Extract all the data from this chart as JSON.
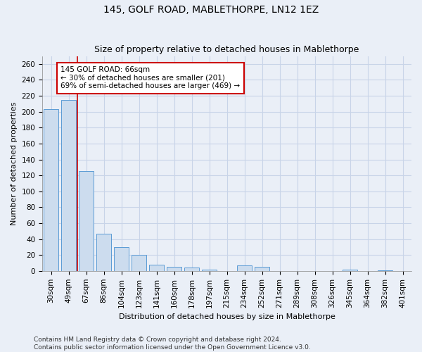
{
  "title": "145, GOLF ROAD, MABLETHORPE, LN12 1EZ",
  "subtitle": "Size of property relative to detached houses in Mablethorpe",
  "xlabel": "Distribution of detached houses by size in Mablethorpe",
  "ylabel": "Number of detached properties",
  "categories": [
    "30sqm",
    "49sqm",
    "67sqm",
    "86sqm",
    "104sqm",
    "123sqm",
    "141sqm",
    "160sqm",
    "178sqm",
    "197sqm",
    "215sqm",
    "234sqm",
    "252sqm",
    "271sqm",
    "289sqm",
    "308sqm",
    "326sqm",
    "345sqm",
    "364sqm",
    "382sqm",
    "401sqm"
  ],
  "bar_heights": [
    203,
    215,
    125,
    47,
    30,
    20,
    8,
    5,
    4,
    2,
    0,
    7,
    5,
    0,
    0,
    0,
    0,
    2,
    0,
    1,
    0
  ],
  "bar_color": "#ccdcee",
  "bar_edge_color": "#5b9bd5",
  "bar_width": 0.85,
  "property_line_x": 1.5,
  "property_line_color": "#cc0000",
  "annotation_text": "145 GOLF ROAD: 66sqm\n← 30% of detached houses are smaller (201)\n69% of semi-detached houses are larger (469) →",
  "annotation_bbox_color": "#ffffff",
  "annotation_bbox_edge_color": "#cc0000",
  "ylim": [
    0,
    270
  ],
  "yticks": [
    0,
    20,
    40,
    60,
    80,
    100,
    120,
    140,
    160,
    180,
    200,
    220,
    240,
    260
  ],
  "grid_color": "#c8d4e8",
  "background_color": "#eaeff7",
  "footer_text": "Contains HM Land Registry data © Crown copyright and database right 2024.\nContains public sector information licensed under the Open Government Licence v3.0.",
  "title_fontsize": 10,
  "subtitle_fontsize": 9,
  "axis_label_fontsize": 8,
  "tick_fontsize": 7.5,
  "footer_fontsize": 6.5,
  "annotation_fontsize": 7.5
}
